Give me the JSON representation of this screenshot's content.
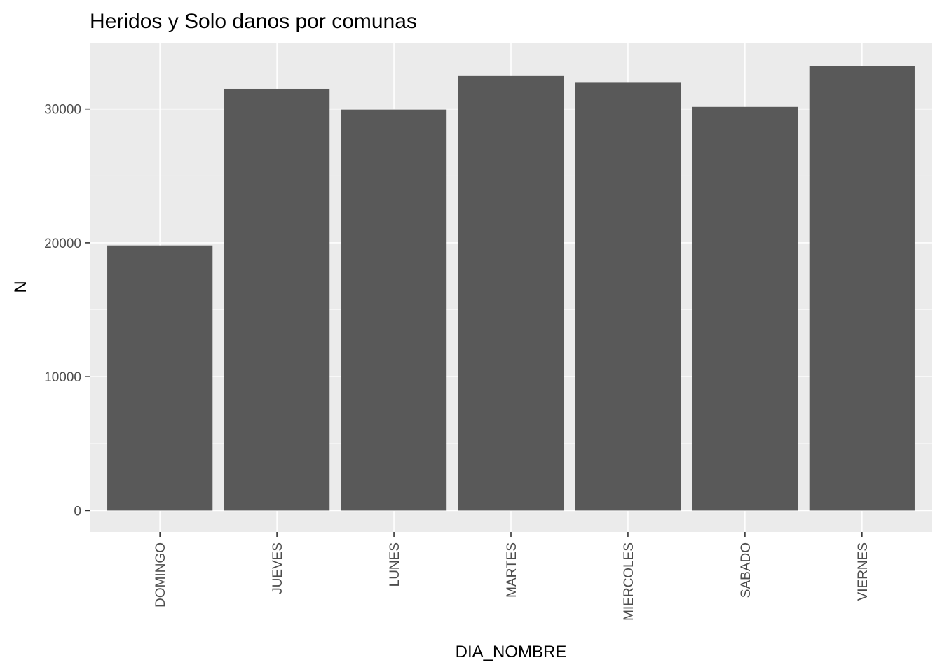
{
  "chart_data": {
    "type": "bar",
    "title": "Heridos y Solo danos por comunas",
    "xlabel": "DIA_NOMBRE",
    "ylabel": "N",
    "categories": [
      "DOMINGO",
      "JUEVES",
      "LUNES",
      "MARTES",
      "MIERCOLES",
      "SABADO",
      "VIERNES"
    ],
    "values": [
      19800,
      31500,
      29950,
      32500,
      32000,
      30150,
      33200
    ],
    "ylim": [
      -1600,
      34950
    ],
    "yticks": [
      0,
      10000,
      20000,
      30000
    ],
    "ytick_labels": [
      "0",
      "10000",
      "20000",
      "30000"
    ],
    "grid": true,
    "colors": {
      "panel": "#ebebeb",
      "grid_major": "#ffffff",
      "bar": "#595959",
      "tick": "#333333"
    }
  }
}
